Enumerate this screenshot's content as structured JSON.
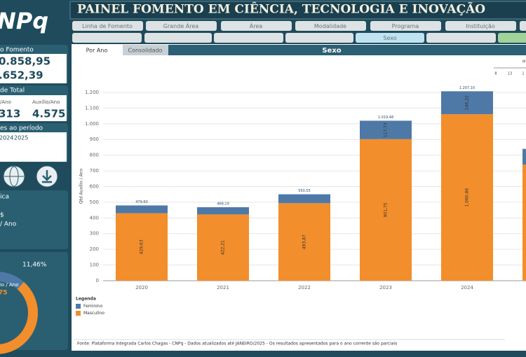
{
  "header": {
    "logo": "NPq",
    "title": "PAINEL FOMENTO EM CIÊNCIA, TECNOLOGIA E INOVAÇÃO"
  },
  "filters": {
    "row1": [
      "Linha de Fomento",
      "Grande Área",
      "Área",
      "Modalidade",
      "Programa",
      "Instituição"
    ],
    "active": "Sexo"
  },
  "sidebar": {
    "card1": {
      "title": "o Fomento",
      "values": [
        "0.858,95",
        ".652,39"
      ]
    },
    "card2": {
      "title": "de Total",
      "columns": [
        "/Ano",
        "Auxílio/Ano"
      ],
      "values": [
        "313",
        "4.575"
      ]
    },
    "card3": {
      "title": "es ao período",
      "years": [
        "2024",
        "2025"
      ]
    },
    "card4": {
      "title": "ica",
      "lines": [
        "$",
        "/ Ano"
      ]
    },
    "donut": {
      "value": 11.46,
      "label": "11,46%",
      "caption": "lio / Ano",
      "center": "75"
    }
  },
  "tabs": [
    "Por Ano",
    "Consolidado"
  ],
  "slider": {
    "title": "M",
    "labels": [
      "8",
      "13",
      "1"
    ]
  },
  "chart_data": {
    "type": "bar",
    "stacked": true,
    "title": "Sexo",
    "ylabel": "Qtd Auxílio / Ano",
    "categories": [
      "2020",
      "2021",
      "2022",
      "2023",
      "2024",
      null
    ],
    "series": [
      {
        "name": "Feminino",
        "color": "#4e79a7",
        "values": [
          49.97,
          45.98,
          56.68,
          117.73,
          146.22,
          100
        ],
        "value_labels": [
          null,
          null,
          null,
          "117,73",
          "146,22",
          null
        ]
      },
      {
        "name": "Masculino",
        "color": "#f28e2b",
        "values": [
          429.63,
          422.21,
          493.87,
          901.75,
          1060.86,
          740
        ],
        "value_labels": [
          "429,63",
          "422,21",
          "493,87",
          "901,75",
          "1.060,86",
          null
        ]
      }
    ],
    "totals": {
      "values": [
        479.6,
        468.19,
        550.55,
        1019.48,
        1207.1,
        null
      ],
      "value_labels": [
        "479,60",
        "468,19",
        "550,55",
        "1.019,48",
        "1.207,10",
        null
      ]
    },
    "ylim": [
      0,
      1240
    ],
    "yticks": [
      0,
      100,
      200,
      300,
      400,
      500,
      600,
      700,
      800,
      900,
      {
        "value": 1000,
        "label": "1.000"
      },
      {
        "value": 1100,
        "label": "1.100"
      },
      {
        "value": 1200,
        "label": "1.200"
      }
    ],
    "grid": true,
    "legend_title": "Legenda",
    "legend_position": "bottom-left"
  },
  "footer": "Fonte: Plataforma Integrada Carlos Chagas - CNPq - Dados atualizados até JANEIRO/2025 - Os resultados apresentados para o ano corrente são parciais"
}
